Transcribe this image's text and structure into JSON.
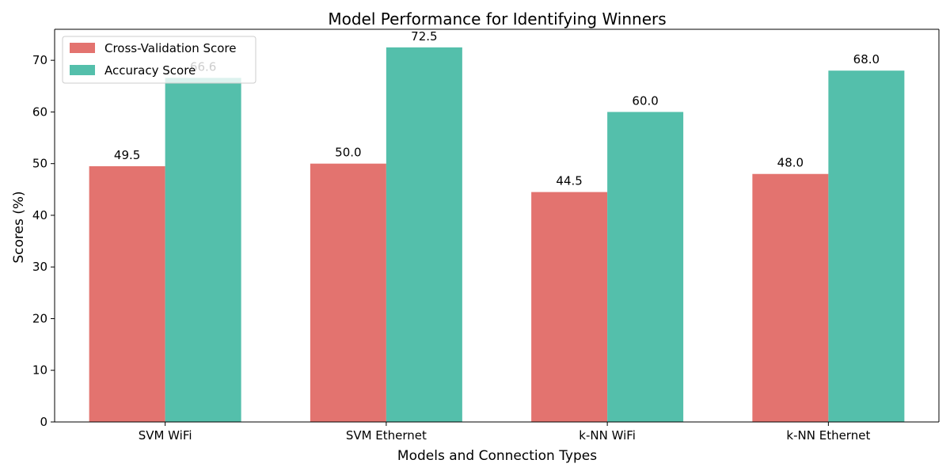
{
  "chart_data": {
    "type": "bar",
    "title": "Model Performance for Identifying Winners",
    "xlabel": "Models and Connection Types",
    "ylabel": "Scores (%)",
    "categories": [
      "SVM WiFi",
      "SVM Ethernet",
      "k-NN WiFi",
      "k-NN Ethernet"
    ],
    "series": [
      {
        "name": "Cross-Validation Score",
        "values": [
          49.5,
          50.0,
          44.5,
          48.0
        ],
        "labels": [
          "49.5",
          "50.0",
          "44.5",
          "48.0"
        ],
        "color": "#e3736f"
      },
      {
        "name": "Accuracy Score",
        "values": [
          66.6,
          72.5,
          60.0,
          68.0
        ],
        "labels": [
          "66.6",
          "72.5",
          "60.0",
          "68.0"
        ],
        "color": "#54bfab"
      }
    ],
    "yticks": [
      0,
      10,
      20,
      30,
      40,
      50,
      60,
      70
    ],
    "ylim": [
      0,
      76
    ],
    "grid": false,
    "legend_position": "top-left"
  }
}
